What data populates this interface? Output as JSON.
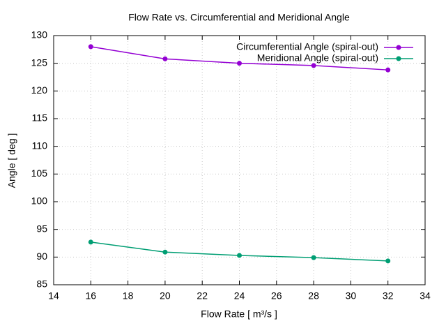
{
  "chart_data": {
    "type": "line",
    "title": "Flow Rate vs. Circumferential and Meridional Angle",
    "x_label": "Flow Rate [ m³/s ]",
    "y_label": "Angle [ deg ]",
    "x": [
      16,
      20,
      24,
      28,
      32
    ],
    "series": [
      {
        "name": "Circumferential Angle (spiral-out)",
        "color": "#9400d3",
        "values": [
          128.0,
          125.8,
          125.0,
          124.6,
          123.8
        ]
      },
      {
        "name": "Meridional Angle (spiral-out)",
        "color": "#009e73",
        "values": [
          92.7,
          90.9,
          90.3,
          89.9,
          89.3
        ]
      }
    ],
    "xlim": [
      14,
      34
    ],
    "xticks": [
      14,
      16,
      18,
      20,
      22,
      24,
      26,
      28,
      30,
      32,
      34
    ],
    "ylim": [
      85,
      130
    ],
    "yticks": [
      85,
      90,
      95,
      100,
      105,
      110,
      115,
      120,
      125,
      130
    ],
    "grid": true,
    "legend": "top-right"
  }
}
